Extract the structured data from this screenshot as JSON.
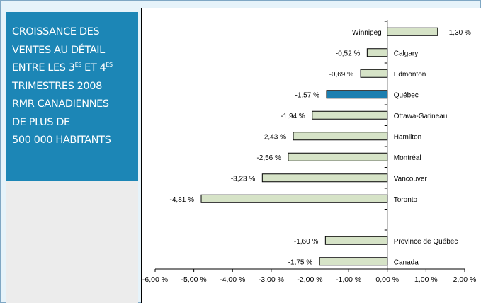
{
  "title": {
    "line1": "Croissance des",
    "line2": "ventes au détail",
    "line3_pre": "entre les 3",
    "line3_sup1": "es",
    "line3_mid": " et 4",
    "line3_sup2": "es",
    "line4": "trimestres 2008",
    "line5": "RMR canadiennes",
    "line6": "de plus de",
    "line7": "500 000 habitants"
  },
  "colors": {
    "bar": "#d6e3c7",
    "highlight": "#1c7fb0",
    "title_bg": "#1c86b6"
  },
  "chart_data": {
    "type": "bar",
    "orientation": "horizontal",
    "categories": [
      "Winnipeg",
      "Calgary",
      "Edmonton",
      "Québec",
      "Ottawa-Gatineau",
      "Hamilton",
      "Montréal",
      "Vancouver",
      "Toronto",
      "Province de Québec",
      "Canada"
    ],
    "values": [
      1.3,
      -0.52,
      -0.69,
      -1.57,
      -1.94,
      -2.43,
      -2.56,
      -3.23,
      -4.81,
      -1.6,
      -1.75
    ],
    "value_labels": [
      "1,30 %",
      "-0,52 %",
      "-0,69 %",
      "-1,57 %",
      "-1,94 %",
      "-2,43 %",
      "-2,56 %",
      "-3,23 %",
      "-4,81 %",
      "-1,60 %",
      "-1,75 %"
    ],
    "highlighted": "Québec",
    "xlim": [
      -6,
      2
    ],
    "xticks": [
      -6,
      -5,
      -4,
      -3,
      -2,
      -1,
      0,
      1,
      2
    ],
    "xtick_labels": [
      "-6,00 %",
      "-5,00 %",
      "-4,00 %",
      "-3,00 %",
      "-2,00 %",
      "-1,00 %",
      "0,00 %",
      "1,00 %",
      "2,00 %"
    ],
    "grid": false,
    "legend": "none"
  }
}
